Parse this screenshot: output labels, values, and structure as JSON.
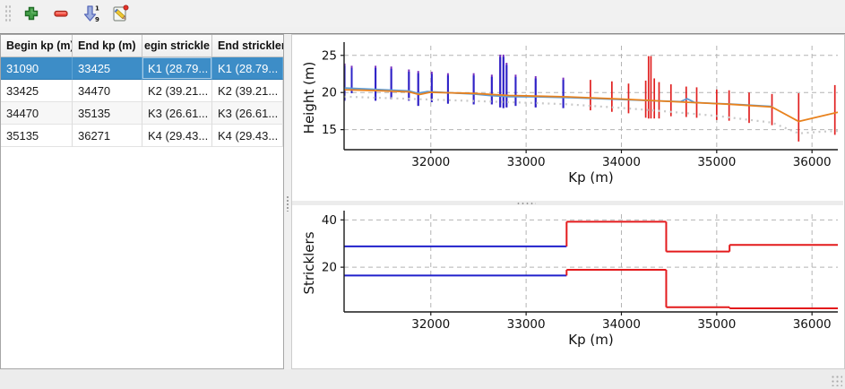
{
  "toolbar": {
    "buttons": [
      {
        "label": "add",
        "icon": "plus-icon"
      },
      {
        "label": "remove",
        "icon": "minus-icon"
      },
      {
        "label": "sort",
        "icon": "sort-numeric-icon"
      },
      {
        "label": "edit",
        "icon": "edit-pencil-icon"
      }
    ],
    "sort_digits": [
      "1",
      "9"
    ]
  },
  "table": {
    "headers": [
      "Begin kp (m)",
      "End kp (m)",
      "egin strickle",
      "End strickler"
    ],
    "rows": [
      {
        "cells": [
          "31090",
          "33425",
          "K1 (28.79...",
          "K1 (28.79..."
        ],
        "selected": true
      },
      {
        "cells": [
          "33425",
          "34470",
          "K2 (39.21...",
          "K2 (39.21..."
        ],
        "selected": false
      },
      {
        "cells": [
          "34470",
          "35135",
          "K3 (26.61...",
          "K3 (26.61..."
        ],
        "selected": false
      },
      {
        "cells": [
          "35135",
          "36271",
          "K4 (29.43...",
          "K4 (29.43..."
        ],
        "selected": false
      }
    ]
  },
  "colors": {
    "selection": "#3d8dc7",
    "bar_blue": "#2d24c8",
    "bar_blue_cap": "#7a30c0",
    "bar_red": "#e02020",
    "line_blue": "#5b9bd5",
    "line_orange": "#e8821e",
    "line_dotted_gray": "#c9c9c9",
    "step_blue": "#2020cc",
    "step_red": "#e31a1c"
  },
  "chart_data": [
    {
      "type": "line",
      "xlabel": "Kp (m)",
      "ylabel": "Height (m)",
      "xlim": [
        31090,
        36271
      ],
      "ylim": [
        12.3,
        26.3
      ],
      "xticks": [
        32000,
        33000,
        34000,
        35000,
        36000
      ],
      "yticks": [
        15,
        20,
        25
      ],
      "grid": true,
      "legend": "none",
      "series": [
        {
          "name": "profile-line-blue",
          "color": "#5b9bd5",
          "style": "solid",
          "width": 1.8,
          "points": [
            [
              31090,
              20.62
            ],
            [
              31300,
              20.5
            ],
            [
              31500,
              20.38
            ],
            [
              31770,
              20.22
            ],
            [
              31860,
              19.9
            ],
            [
              31960,
              20.12
            ],
            [
              32180,
              19.98
            ],
            [
              32450,
              19.8
            ],
            [
              32640,
              19.58
            ],
            [
              32820,
              19.45
            ],
            [
              33100,
              19.42
            ],
            [
              33425,
              19.32
            ],
            [
              33670,
              19.22
            ],
            [
              34080,
              19.02
            ],
            [
              34400,
              18.87
            ],
            [
              34620,
              18.77
            ],
            [
              34690,
              19.15
            ],
            [
              34770,
              18.65
            ],
            [
              35000,
              18.52
            ],
            [
              35130,
              18.45
            ],
            [
              35340,
              18.3
            ],
            [
              35580,
              18.12
            ]
          ]
        },
        {
          "name": "profile-line-orange",
          "color": "#e8821e",
          "style": "solid",
          "width": 1.8,
          "points": [
            [
              31090,
              20.38
            ],
            [
              31300,
              20.3
            ],
            [
              31500,
              20.22
            ],
            [
              31770,
              20.08
            ],
            [
              31880,
              19.72
            ],
            [
              31990,
              20.02
            ],
            [
              32450,
              19.88
            ],
            [
              32820,
              19.6
            ],
            [
              33100,
              19.52
            ],
            [
              33425,
              19.42
            ],
            [
              34000,
              19.12
            ],
            [
              34470,
              18.82
            ],
            [
              35000,
              18.5
            ],
            [
              35135,
              18.42
            ],
            [
              35580,
              18.05
            ],
            [
              35860,
              16.1
            ],
            [
              36271,
              17.35
            ]
          ]
        },
        {
          "name": "profile-line-dotted-gray",
          "color": "#c9c9c9",
          "style": "dotted",
          "width": 2.2,
          "points": [
            [
              31090,
              19.45
            ],
            [
              32000,
              19.05
            ],
            [
              33000,
              18.62
            ],
            [
              33425,
              18.42
            ],
            [
              34000,
              17.92
            ],
            [
              34470,
              17.45
            ],
            [
              35000,
              16.85
            ],
            [
              35580,
              15.95
            ],
            [
              35860,
              14.5
            ],
            [
              36100,
              14.72
            ],
            [
              36271,
              14.82
            ]
          ]
        }
      ],
      "vbars": [
        {
          "group": "sections-selected-reach",
          "color": "#2d24c8",
          "cap_color": "#7a30c0",
          "width": 2,
          "bars": [
            [
              31095,
              18.9,
              23.9
            ],
            [
              31170,
              19.9,
              23.6
            ],
            [
              31420,
              18.9,
              23.6
            ],
            [
              31585,
              19.1,
              23.5
            ],
            [
              31770,
              18.9,
              23.1
            ],
            [
              31868,
              18.2,
              22.9
            ],
            [
              32010,
              18.7,
              22.8
            ],
            [
              32180,
              18.5,
              22.6
            ],
            [
              32450,
              18.4,
              22.6
            ],
            [
              32640,
              18.4,
              22.4
            ],
            [
              32728,
              18.0,
              25.1
            ],
            [
              32762,
              17.9,
              25.1
            ],
            [
              32795,
              18.0,
              24.0
            ],
            [
              32890,
              18.2,
              22.4
            ],
            [
              33100,
              18.0,
              22.2
            ],
            [
              33390,
              17.9,
              22.0
            ]
          ]
        },
        {
          "group": "sections-other",
          "color": "#e02020",
          "width": 1.7,
          "bars": [
            [
              33675,
              17.6,
              21.7
            ],
            [
              33900,
              17.4,
              21.5
            ],
            [
              34075,
              17.2,
              21.2
            ],
            [
              34255,
              16.6,
              21.6
            ],
            [
              34285,
              16.5,
              24.9
            ],
            [
              34310,
              16.5,
              24.9
            ],
            [
              34345,
              16.5,
              21.9
            ],
            [
              34395,
              16.5,
              21.4
            ],
            [
              34520,
              16.8,
              21.1
            ],
            [
              34680,
              16.7,
              20.8
            ],
            [
              34790,
              16.6,
              20.7
            ],
            [
              35000,
              16.3,
              20.4
            ],
            [
              35130,
              16.2,
              20.3
            ],
            [
              35340,
              15.9,
              20.0
            ],
            [
              35580,
              15.6,
              19.8
            ],
            [
              35860,
              13.4,
              19.9
            ],
            [
              36240,
              14.3,
              21.0
            ]
          ]
        }
      ]
    },
    {
      "type": "step",
      "xlabel": "Kp (m)",
      "ylabel": "Stricklers",
      "xlim": [
        31090,
        36271
      ],
      "ylim": [
        1.1,
        42.4
      ],
      "xticks": [
        32000,
        33000,
        34000,
        35000,
        36000
      ],
      "yticks": [
        20,
        40
      ],
      "grid": true,
      "legend": "none",
      "series": [
        {
          "name": "strickler-main-channel",
          "width": 2,
          "segments": [
            {
              "x0": 31090,
              "x1": 33425,
              "y": 28.79,
              "color": "#2020cc"
            },
            {
              "x0": 33425,
              "x1": 34470,
              "y": 39.21,
              "color": "#e31a1c"
            },
            {
              "x0": 34470,
              "x1": 35135,
              "y": 26.61,
              "color": "#e31a1c"
            },
            {
              "x0": 35135,
              "x1": 36271,
              "y": 29.43,
              "color": "#e31a1c"
            }
          ]
        },
        {
          "name": "strickler-floodplain",
          "width": 2,
          "segments": [
            {
              "x0": 31090,
              "x1": 33425,
              "y": 16.5,
              "color": "#2020cc"
            },
            {
              "x0": 33425,
              "x1": 34470,
              "y": 18.9,
              "color": "#e31a1c"
            },
            {
              "x0": 34470,
              "x1": 35135,
              "y": 3.1,
              "color": "#e31a1c"
            },
            {
              "x0": 35135,
              "x1": 36271,
              "y": 2.6,
              "color": "#e31a1c"
            }
          ]
        }
      ]
    }
  ]
}
